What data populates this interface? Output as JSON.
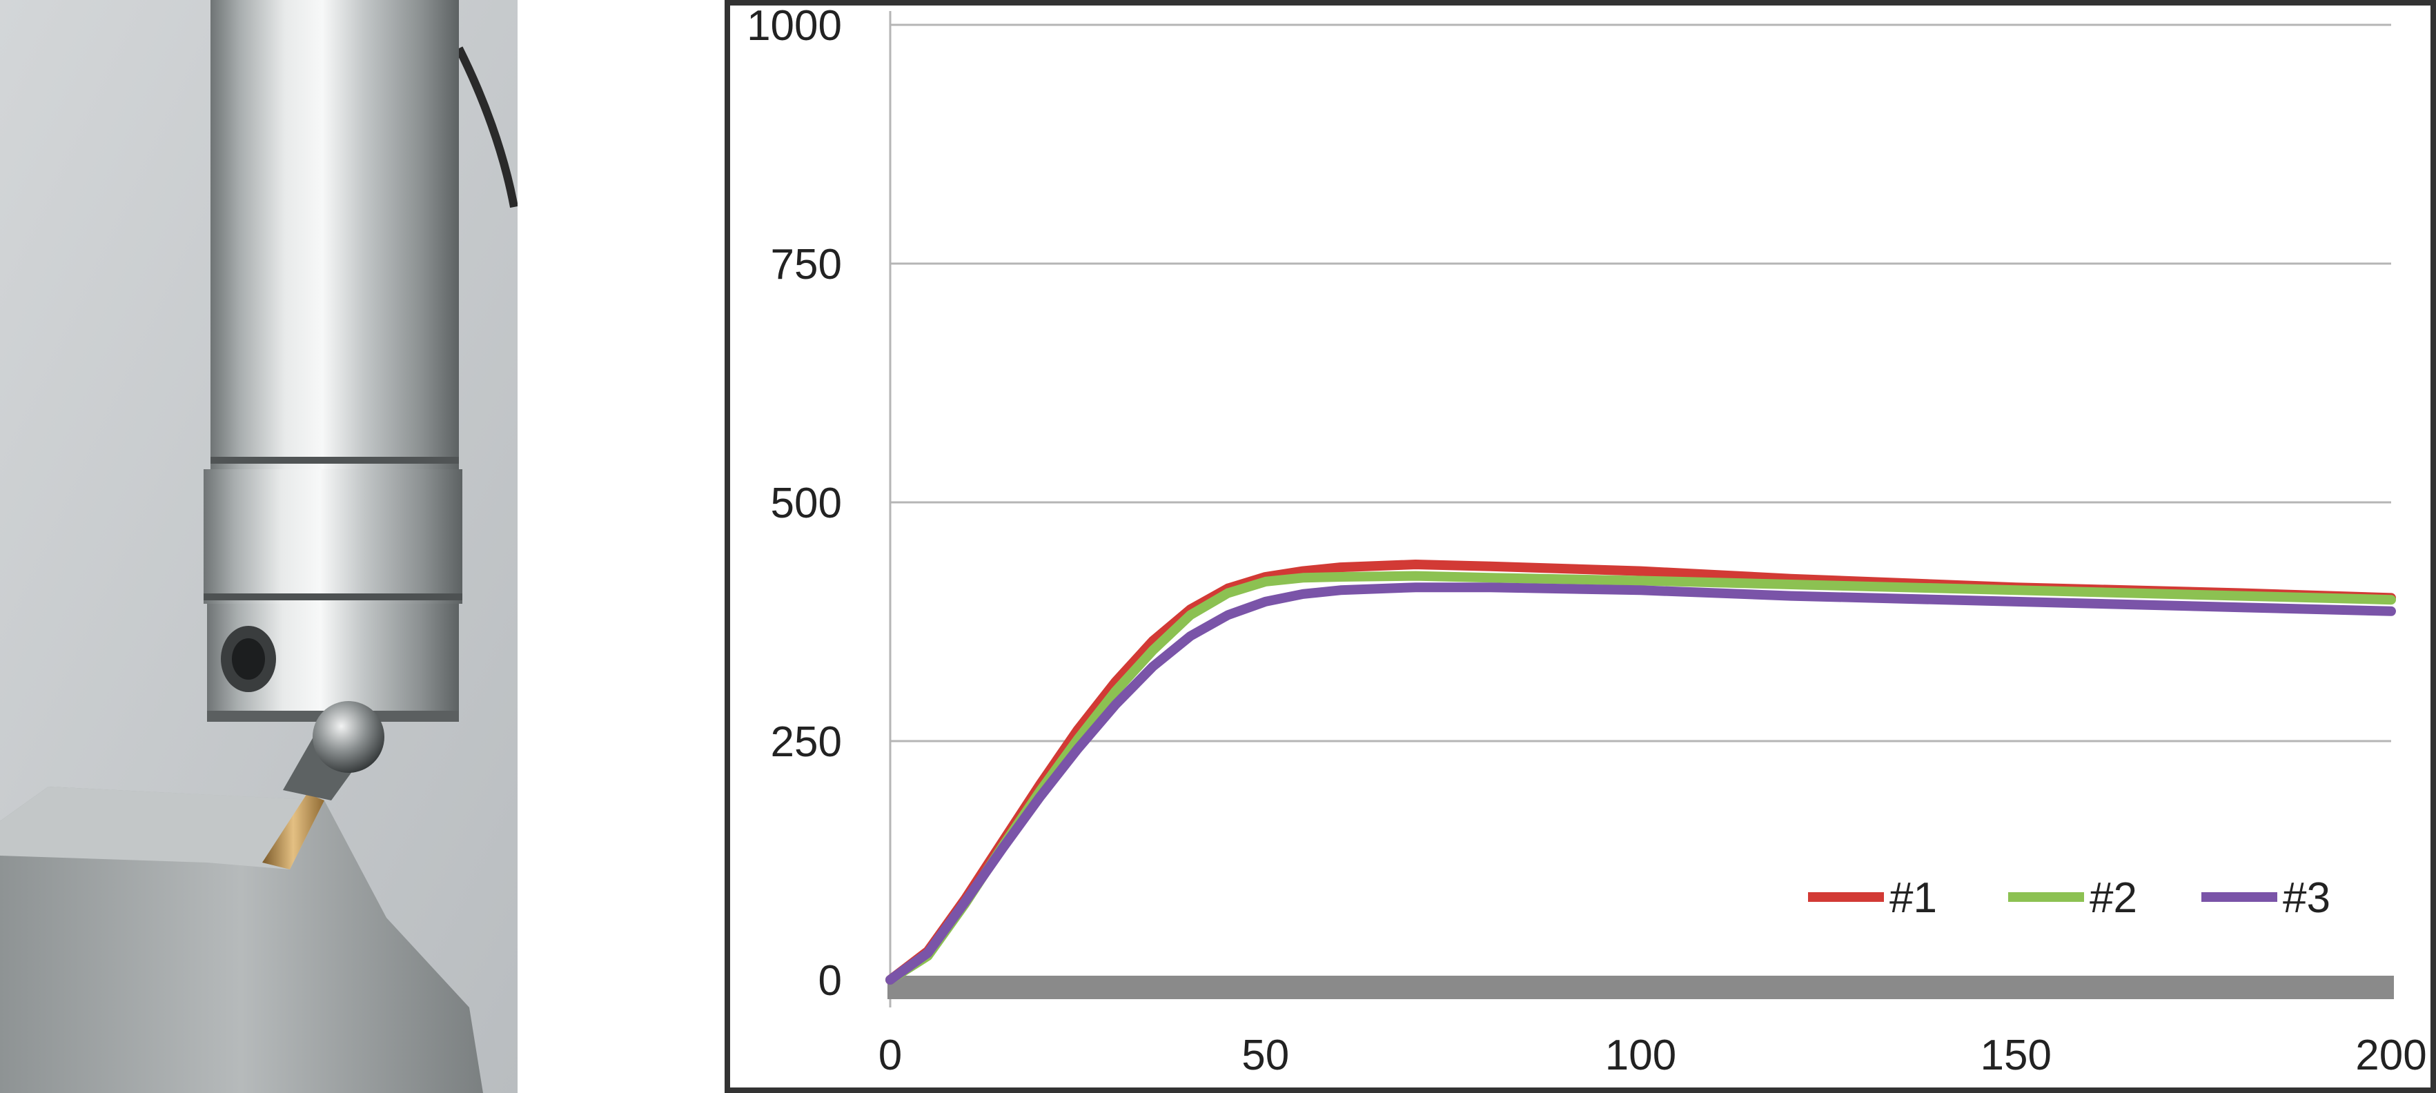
{
  "photo": {
    "alt": "",
    "colors": {
      "wall": "#c7cbcd",
      "steel_light": "#e4e6e6",
      "steel_dark": "#7d8283",
      "bronze": "#c29a5a"
    }
  },
  "chart_data": {
    "type": "line",
    "title": "",
    "xlabel": "",
    "ylabel": "",
    "xlim": [
      0,
      200
    ],
    "ylim": [
      0,
      1000
    ],
    "xticks": [
      "0",
      "50",
      "100",
      "150",
      "200"
    ],
    "yticks": [
      "0",
      "250",
      "500",
      "750",
      "1000"
    ],
    "grid": "horizontal",
    "legend_position": "bottom-right",
    "series": [
      {
        "name": "#1",
        "color": "#d23a35",
        "x": [
          0,
          5,
          10,
          15,
          20,
          25,
          30,
          35,
          40,
          45,
          50,
          55,
          60,
          70,
          80,
          100,
          120,
          150,
          180,
          200
        ],
        "y": [
          0,
          30,
          85,
          145,
          205,
          262,
          312,
          355,
          388,
          410,
          422,
          428,
          432,
          435,
          433,
          428,
          420,
          411,
          405,
          400
        ]
      },
      {
        "name": "#2",
        "color": "#8cc152",
        "x": [
          0,
          5,
          10,
          15,
          20,
          25,
          30,
          35,
          40,
          45,
          50,
          55,
          60,
          70,
          80,
          100,
          120,
          150,
          180,
          200
        ],
        "y": [
          0,
          25,
          80,
          140,
          198,
          252,
          302,
          345,
          382,
          405,
          417,
          421,
          422,
          423,
          421,
          418,
          414,
          408,
          402,
          398
        ]
      },
      {
        "name": "#3",
        "color": "#7a54a8",
        "x": [
          0,
          5,
          10,
          15,
          20,
          25,
          30,
          35,
          40,
          45,
          50,
          55,
          60,
          70,
          80,
          100,
          120,
          150,
          180,
          200
        ],
        "y": [
          0,
          28,
          82,
          138,
          192,
          242,
          288,
          328,
          360,
          382,
          396,
          404,
          408,
          411,
          411,
          408,
          402,
          396,
          390,
          386
        ]
      }
    ],
    "baseline": {
      "y": 0,
      "color": "#8a8a8a"
    }
  }
}
